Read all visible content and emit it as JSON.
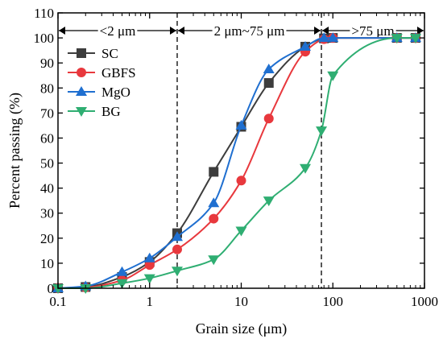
{
  "chart_data": {
    "type": "line",
    "xlabel": "Grain size (μm)",
    "ylabel": "Percent passing (%)",
    "x_scale": "log",
    "xlim": [
      0.1,
      1000
    ],
    "ylim": [
      0,
      110
    ],
    "x_ticks": [
      0.1,
      1,
      10,
      100,
      1000
    ],
    "x_tick_labels": [
      "0.1",
      "1",
      "10",
      "100",
      "1000"
    ],
    "y_ticks": [
      0,
      10,
      20,
      30,
      40,
      50,
      60,
      70,
      80,
      90,
      100,
      110
    ],
    "y_tick_labels": [
      "0",
      "10",
      "20",
      "30",
      "40",
      "50",
      "60",
      "70",
      "80",
      "90",
      "100",
      "110"
    ],
    "grid": false,
    "legend_position": "upper-left",
    "boundaries": [
      2,
      75
    ],
    "regions": [
      {
        "label": "<2 μm",
        "from": 0.1,
        "to": 2
      },
      {
        "label": "2 μm~75 μm",
        "from": 2,
        "to": 75
      },
      {
        "label": ">75 μm",
        "from": 75,
        "to": 1000
      }
    ],
    "series": [
      {
        "name": "SC",
        "color": "#3d3d3d",
        "marker": "square",
        "x": [
          0.1,
          0.2,
          0.5,
          1,
          2,
          5,
          10,
          20,
          50,
          80,
          100,
          500,
          800
        ],
        "y": [
          0,
          0.5,
          4.5,
          10.5,
          22,
          46.5,
          64.5,
          82,
          96.5,
          99.8,
          100,
          100,
          100
        ]
      },
      {
        "name": "GBFS",
        "color": "#e8383d",
        "marker": "circle",
        "x": [
          0.1,
          0.2,
          0.5,
          1,
          2,
          5,
          10,
          20,
          50,
          80,
          100,
          500,
          800
        ],
        "y": [
          0,
          0.3,
          3.2,
          9.3,
          15.5,
          27.8,
          43,
          67.8,
          94.5,
          99.5,
          100,
          100,
          100
        ]
      },
      {
        "name": "MgO",
        "color": "#1f6fd0",
        "marker": "triangle-up",
        "x": [
          0.1,
          0.2,
          0.5,
          1,
          2,
          5,
          10,
          20,
          50,
          80,
          100,
          500,
          800
        ],
        "y": [
          0,
          0.8,
          6.5,
          12,
          20.5,
          34,
          65,
          87.5,
          96.5,
          100,
          100,
          100,
          100
        ]
      },
      {
        "name": "BG",
        "color": "#2fae72",
        "marker": "triangle-down",
        "x": [
          0.1,
          0.2,
          0.5,
          1,
          2,
          5,
          10,
          20,
          50,
          75,
          100,
          500,
          800
        ],
        "y": [
          0,
          0,
          2,
          4,
          7,
          11.5,
          23,
          35,
          48,
          63,
          85,
          100,
          100
        ]
      }
    ]
  }
}
